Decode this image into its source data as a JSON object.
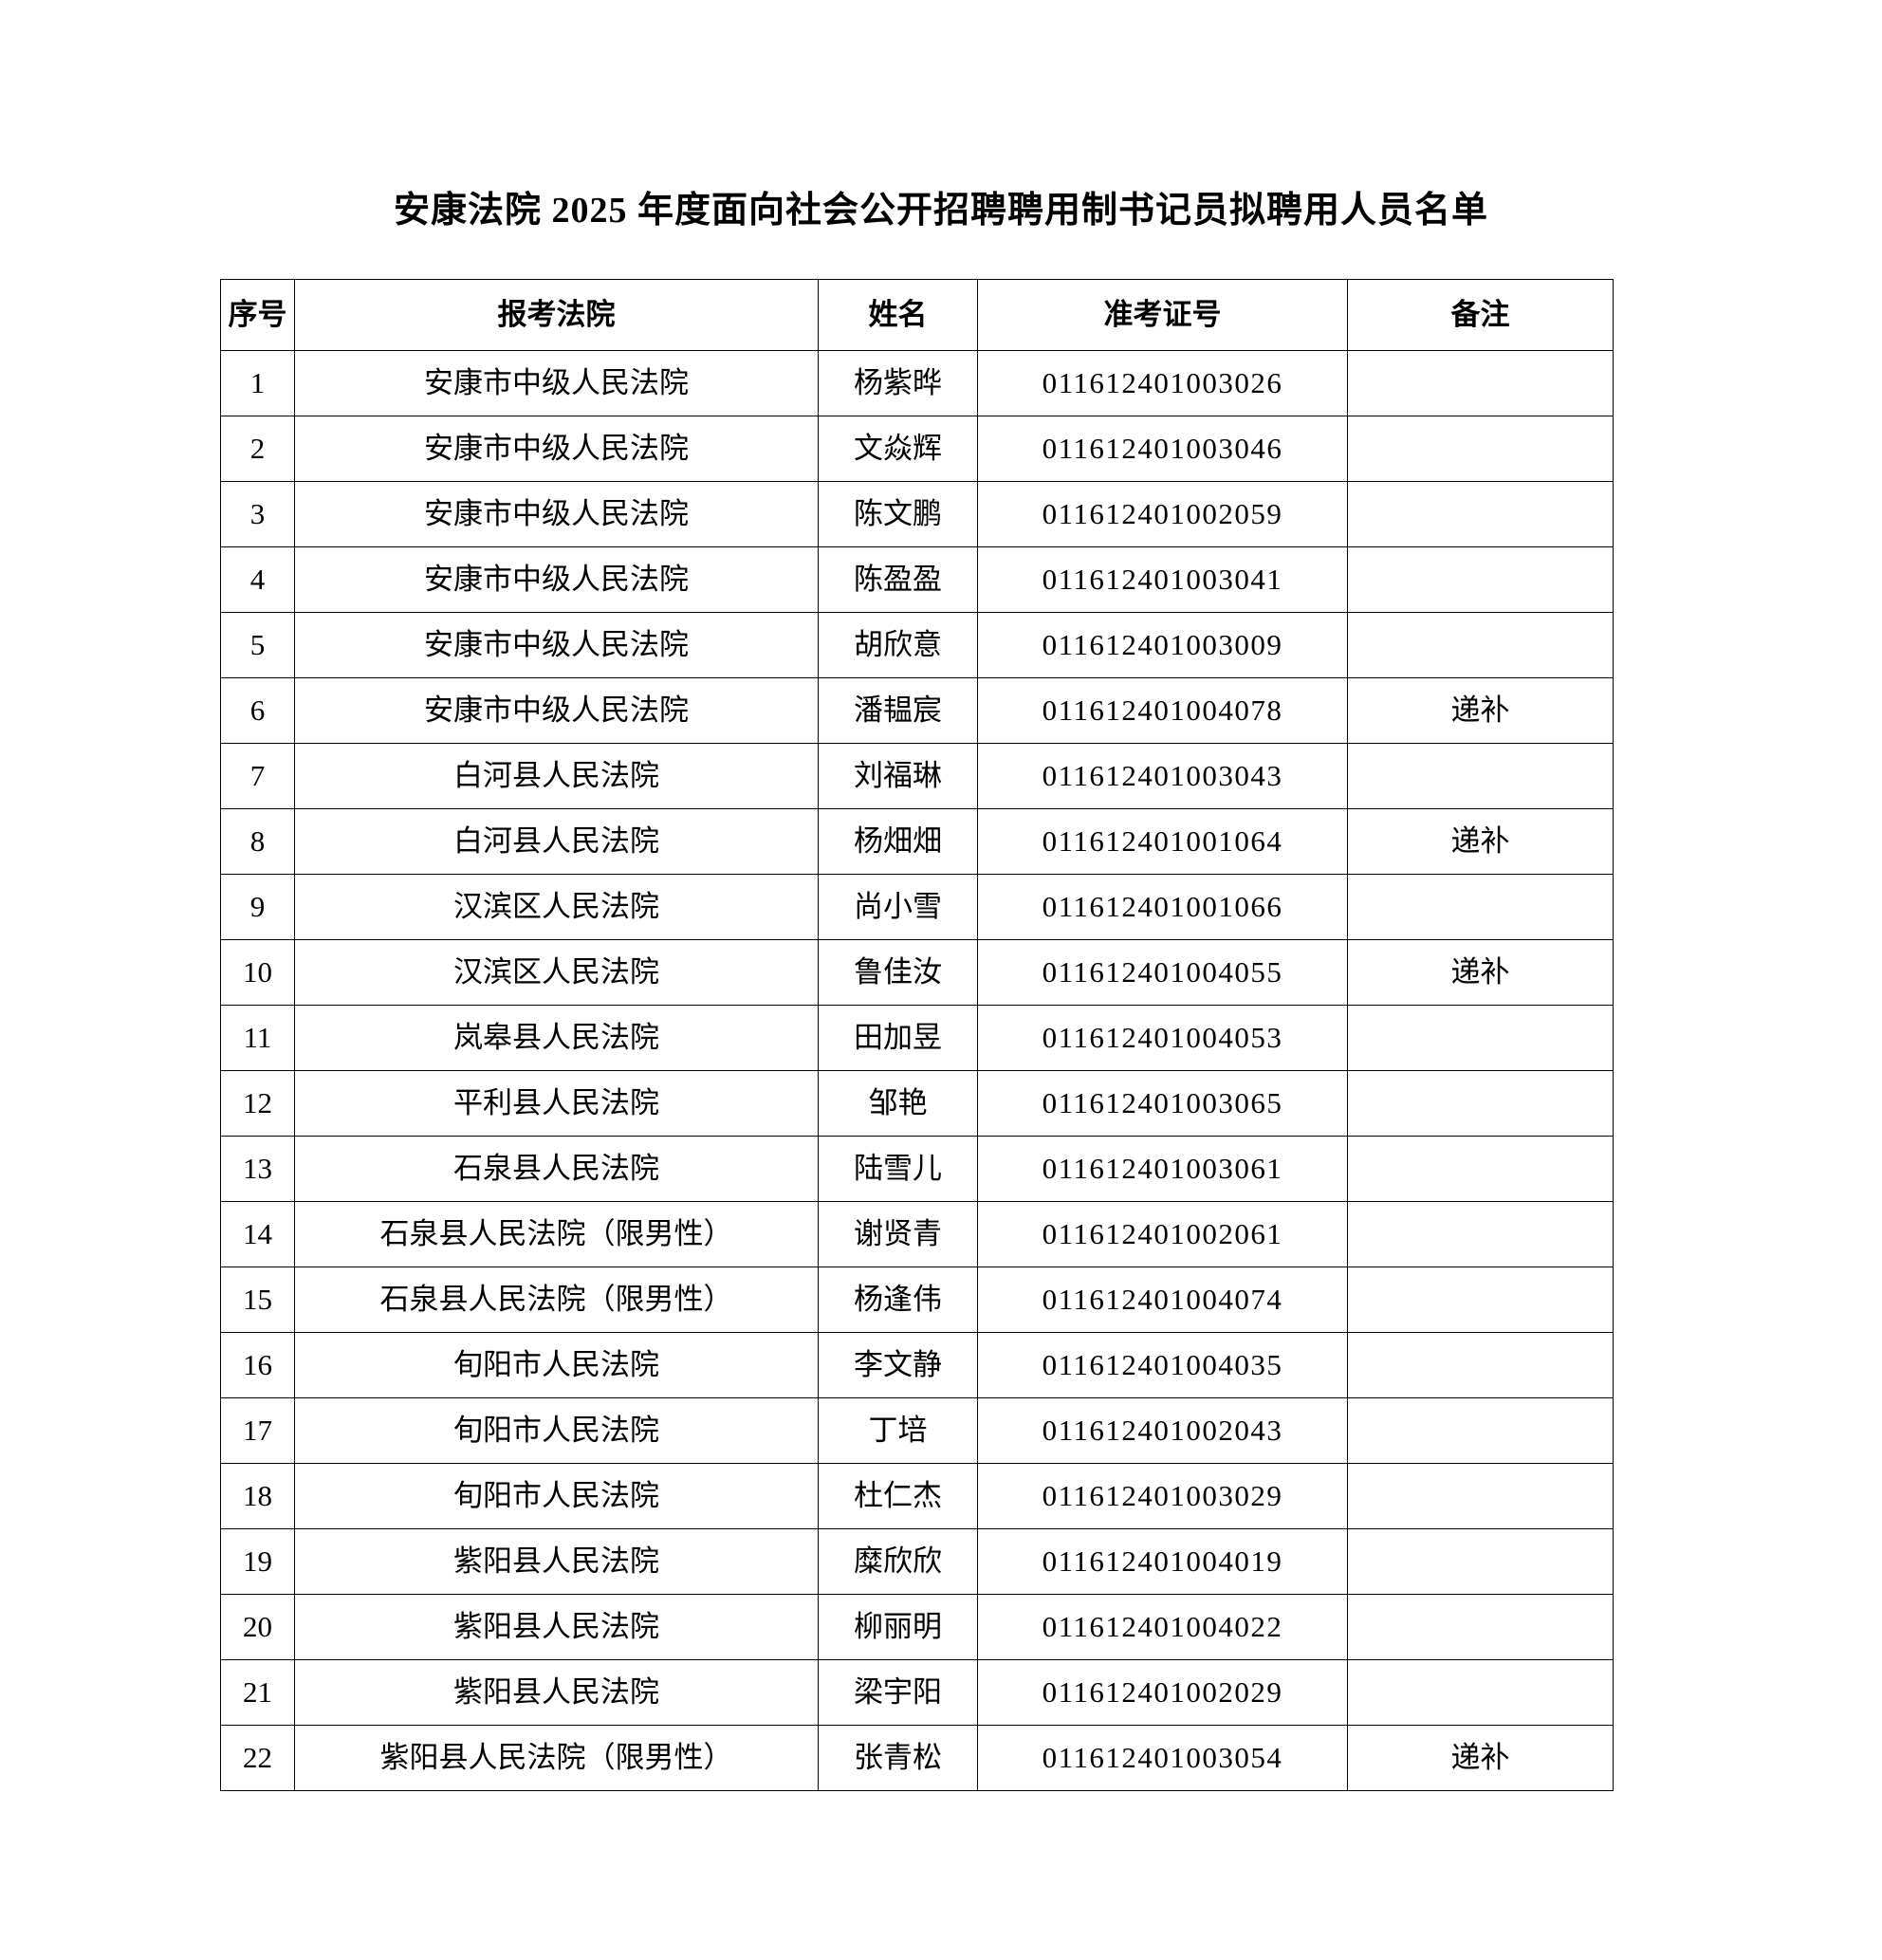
{
  "page": {
    "title": "安康法院 2025 年度面向社会公开招聘聘用制书记员拟聘用人员名单"
  },
  "table": {
    "headers": {
      "seq": "序号",
      "court": "报考法院",
      "name": "姓名",
      "ticket": "准考证号",
      "remark": "备注"
    },
    "remark_value": "递补",
    "rows": [
      {
        "seq": "1",
        "court": "安康市中级人民法院",
        "name": "杨紫晔",
        "ticket": "011612401003026",
        "remark": ""
      },
      {
        "seq": "2",
        "court": "安康市中级人民法院",
        "name": "文焱辉",
        "ticket": "011612401003046",
        "remark": ""
      },
      {
        "seq": "3",
        "court": "安康市中级人民法院",
        "name": "陈文鹏",
        "ticket": "011612401002059",
        "remark": ""
      },
      {
        "seq": "4",
        "court": "安康市中级人民法院",
        "name": "陈盈盈",
        "ticket": "011612401003041",
        "remark": ""
      },
      {
        "seq": "5",
        "court": "安康市中级人民法院",
        "name": "胡欣意",
        "ticket": "011612401003009",
        "remark": ""
      },
      {
        "seq": "6",
        "court": "安康市中级人民法院",
        "name": "潘韫宸",
        "ticket": "011612401004078",
        "remark": "递补"
      },
      {
        "seq": "7",
        "court": "白河县人民法院",
        "name": "刘福琳",
        "ticket": "011612401003043",
        "remark": ""
      },
      {
        "seq": "8",
        "court": "白河县人民法院",
        "name": "杨畑畑",
        "ticket": "011612401001064",
        "remark": "递补"
      },
      {
        "seq": "9",
        "court": "汉滨区人民法院",
        "name": "尚小雪",
        "ticket": "011612401001066",
        "remark": ""
      },
      {
        "seq": "10",
        "court": "汉滨区人民法院",
        "name": "鲁佳汝",
        "ticket": "011612401004055",
        "remark": "递补"
      },
      {
        "seq": "11",
        "court": "岚皋县人民法院",
        "name": "田加昱",
        "ticket": "011612401004053",
        "remark": ""
      },
      {
        "seq": "12",
        "court": "平利县人民法院",
        "name": "邹艳",
        "ticket": "011612401003065",
        "remark": ""
      },
      {
        "seq": "13",
        "court": "石泉县人民法院",
        "name": "陆雪儿",
        "ticket": "011612401003061",
        "remark": ""
      },
      {
        "seq": "14",
        "court": "石泉县人民法院（限男性）",
        "name": "谢贤青",
        "ticket": "011612401002061",
        "remark": ""
      },
      {
        "seq": "15",
        "court": "石泉县人民法院（限男性）",
        "name": "杨逢伟",
        "ticket": "011612401004074",
        "remark": ""
      },
      {
        "seq": "16",
        "court": "旬阳市人民法院",
        "name": "李文静",
        "ticket": "011612401004035",
        "remark": ""
      },
      {
        "seq": "17",
        "court": "旬阳市人民法院",
        "name": "丁培",
        "ticket": "011612401002043",
        "remark": ""
      },
      {
        "seq": "18",
        "court": "旬阳市人民法院",
        "name": "杜仁杰",
        "ticket": "011612401003029",
        "remark": ""
      },
      {
        "seq": "19",
        "court": "紫阳县人民法院",
        "name": "糜欣欣",
        "ticket": "011612401004019",
        "remark": ""
      },
      {
        "seq": "20",
        "court": "紫阳县人民法院",
        "name": "柳丽明",
        "ticket": "011612401004022",
        "remark": ""
      },
      {
        "seq": "21",
        "court": "紫阳县人民法院",
        "name": "梁宇阳",
        "ticket": "011612401002029",
        "remark": ""
      },
      {
        "seq": "22",
        "court": "紫阳县人民法院（限男性）",
        "name": "张青松",
        "ticket": "011612401003054",
        "remark": "递补"
      }
    ]
  }
}
